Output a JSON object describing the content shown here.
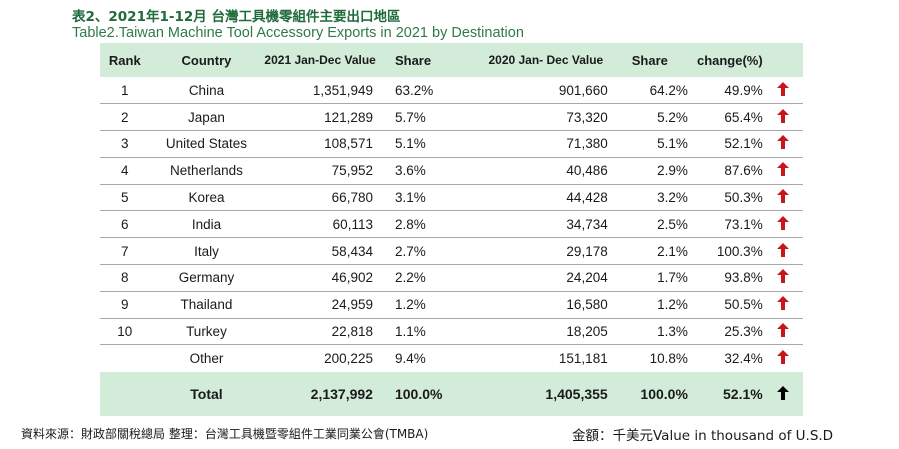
{
  "title_zh": "表2、2021年1-12月 台灣工具機零組件主要出口地區",
  "title_en": "Table2.Taiwan Machine Tool Accessory  Exports in 2021 by Destination",
  "headers": {
    "rank": "Rank",
    "country": "Country",
    "value_2021": "2021 Jan-Dec Value",
    "share_2021": "Share",
    "value_2020": "2020 Jan- Dec Value",
    "share_2020": "Share",
    "change": "change(%)"
  },
  "rows": [
    {
      "rank": "1",
      "country": "China",
      "value_2021": "1,351,949",
      "share_2021": "63.2%",
      "value_2020": "901,660",
      "share_2020": "64.2%",
      "change": "49.9%"
    },
    {
      "rank": "2",
      "country": "Japan",
      "value_2021": "121,289",
      "share_2021": "5.7%",
      "value_2020": "73,320",
      "share_2020": "5.2%",
      "change": "65.4%"
    },
    {
      "rank": "3",
      "country": "United States",
      "value_2021": "108,571",
      "share_2021": "5.1%",
      "value_2020": "71,380",
      "share_2020": "5.1%",
      "change": "52.1%"
    },
    {
      "rank": "4",
      "country": "Netherlands",
      "value_2021": "75,952",
      "share_2021": "3.6%",
      "value_2020": "40,486",
      "share_2020": "2.9%",
      "change": "87.6%"
    },
    {
      "rank": "5",
      "country": "Korea",
      "value_2021": "66,780",
      "share_2021": "3.1%",
      "value_2020": "44,428",
      "share_2020": "3.2%",
      "change": "50.3%"
    },
    {
      "rank": "6",
      "country": "India",
      "value_2021": "60,113",
      "share_2021": "2.8%",
      "value_2020": "34,734",
      "share_2020": "2.5%",
      "change": "73.1%"
    },
    {
      "rank": "7",
      "country": "Italy",
      "value_2021": "58,434",
      "share_2021": "2.7%",
      "value_2020": "29,178",
      "share_2020": "2.1%",
      "change": "100.3%"
    },
    {
      "rank": "8",
      "country": "Germany",
      "value_2021": "46,902",
      "share_2021": "2.2%",
      "value_2020": "24,204",
      "share_2020": "1.7%",
      "change": "93.8%"
    },
    {
      "rank": "9",
      "country": "Thailand",
      "value_2021": "24,959",
      "share_2021": "1.2%",
      "value_2020": "16,580",
      "share_2020": "1.2%",
      "change": "50.5%"
    },
    {
      "rank": "10",
      "country": "Turkey",
      "value_2021": "22,818",
      "share_2021": "1.1%",
      "value_2020": "18,205",
      "share_2020": "1.3%",
      "change": "25.3%"
    },
    {
      "rank": "",
      "country": "Other",
      "value_2021": "200,225",
      "share_2021": "9.4%",
      "value_2020": "151,181",
      "share_2020": "10.8%",
      "change": "32.4%"
    }
  ],
  "total": {
    "label": "Total",
    "value_2021": "2,137,992",
    "share_2021": "100.0%",
    "value_2020": "1,405,355",
    "share_2020": "100.0%",
    "change": "52.1%"
  },
  "arrow_icon": "arrow-up-icon",
  "colors": {
    "header_bg": "#d3ebd9",
    "title_green": "#1f6b3a",
    "arrow_red": "#c8161d",
    "arrow_black": "#000000"
  },
  "footer": {
    "source": "資料來源：財政部關稅總局   整理：台灣工具機暨零組件工業同業公會(TMBA)",
    "unit": "金額：千美元Value in thousand of U.S.D"
  }
}
